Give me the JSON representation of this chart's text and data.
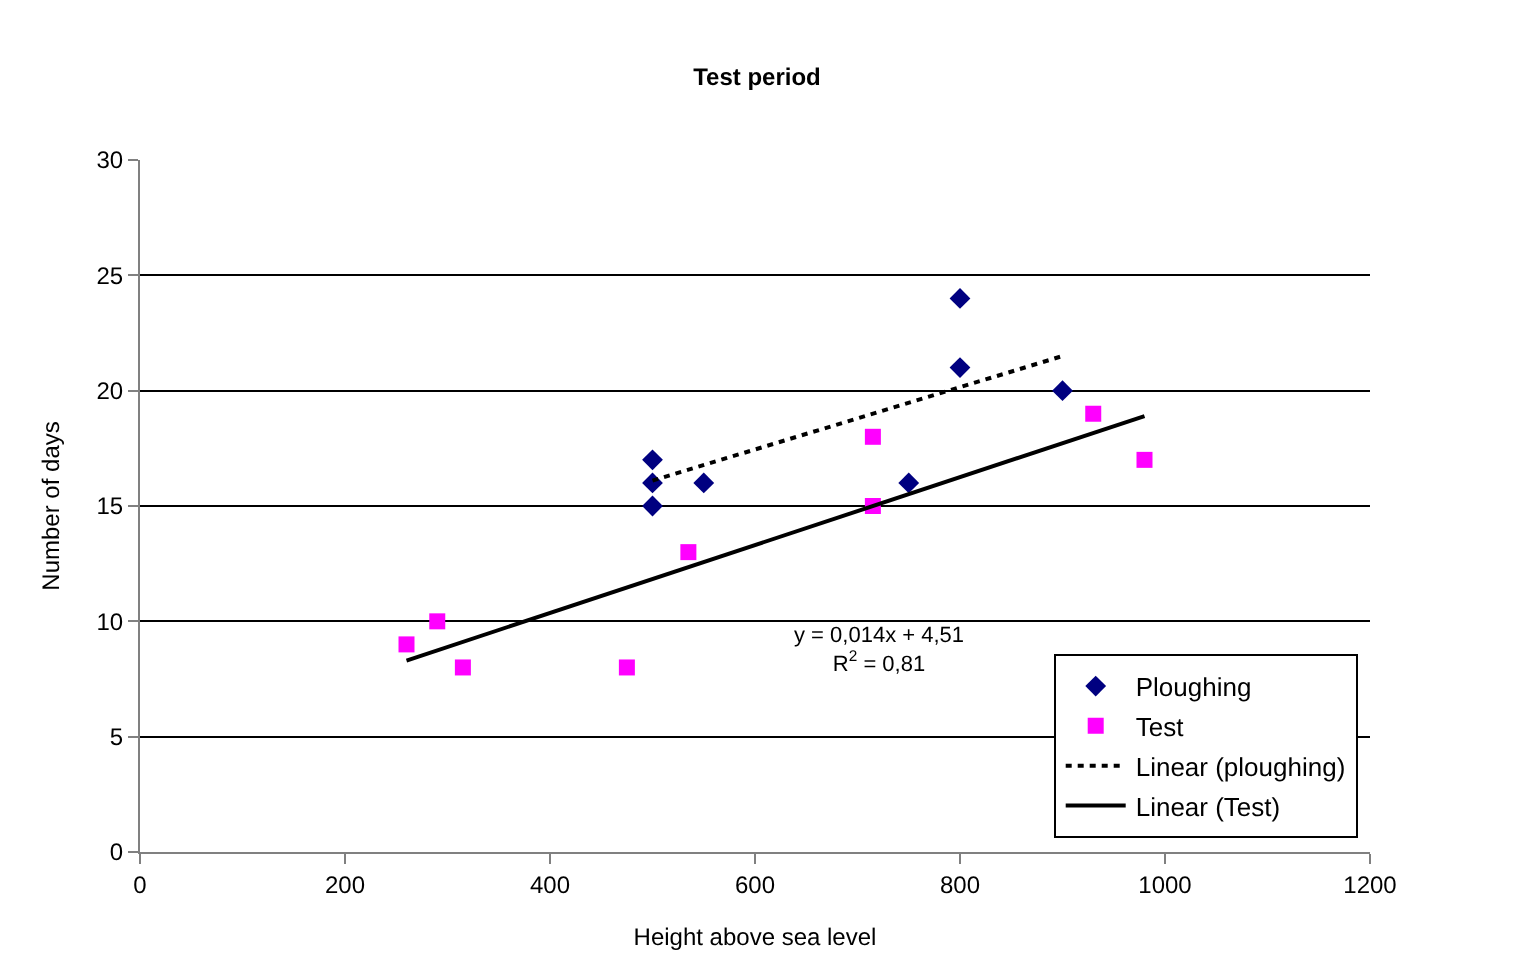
{
  "chart_data": {
    "type": "scatter",
    "title": "Test period",
    "xlabel": "Height above sea level",
    "ylabel": "Number of days",
    "xlim": [
      0,
      1200
    ],
    "xticks": [
      0,
      200,
      400,
      600,
      800,
      1000,
      1200
    ],
    "ylim": [
      0,
      30
    ],
    "yticks": [
      0,
      5,
      10,
      15,
      20,
      25,
      30
    ],
    "grid": "y",
    "legend": "bottom right",
    "series": [
      {
        "name": "Ploughing",
        "color": "#000080",
        "marker": "diamond",
        "x": [
          500,
          500,
          500,
          550,
          750,
          800,
          800,
          900
        ],
        "values": [
          17,
          16,
          15,
          16,
          16,
          24,
          21,
          20
        ]
      },
      {
        "name": "Test",
        "color": "#ff00ff",
        "marker": "square",
        "x": [
          260,
          290,
          315,
          475,
          535,
          715,
          715,
          930,
          980
        ],
        "values": [
          9,
          10,
          8,
          8,
          13,
          18,
          15,
          19,
          17
        ]
      },
      {
        "name": "Linear (ploughing)",
        "type": "line",
        "color": "#000000",
        "line_style": "dotted",
        "marker": "none",
        "x": [
          500,
          900
        ],
        "values": [
          16.1,
          21.5
        ]
      },
      {
        "name": "Linear (Test)",
        "type": "line",
        "color": "#000000",
        "line_style": "solid",
        "marker": "none",
        "x": [
          260,
          980
        ],
        "values": [
          8.3,
          18.9
        ]
      }
    ],
    "annotations": [
      "y = 0,014x + 4,51\nR$^{2}$ = 0,81"
    ]
  }
}
